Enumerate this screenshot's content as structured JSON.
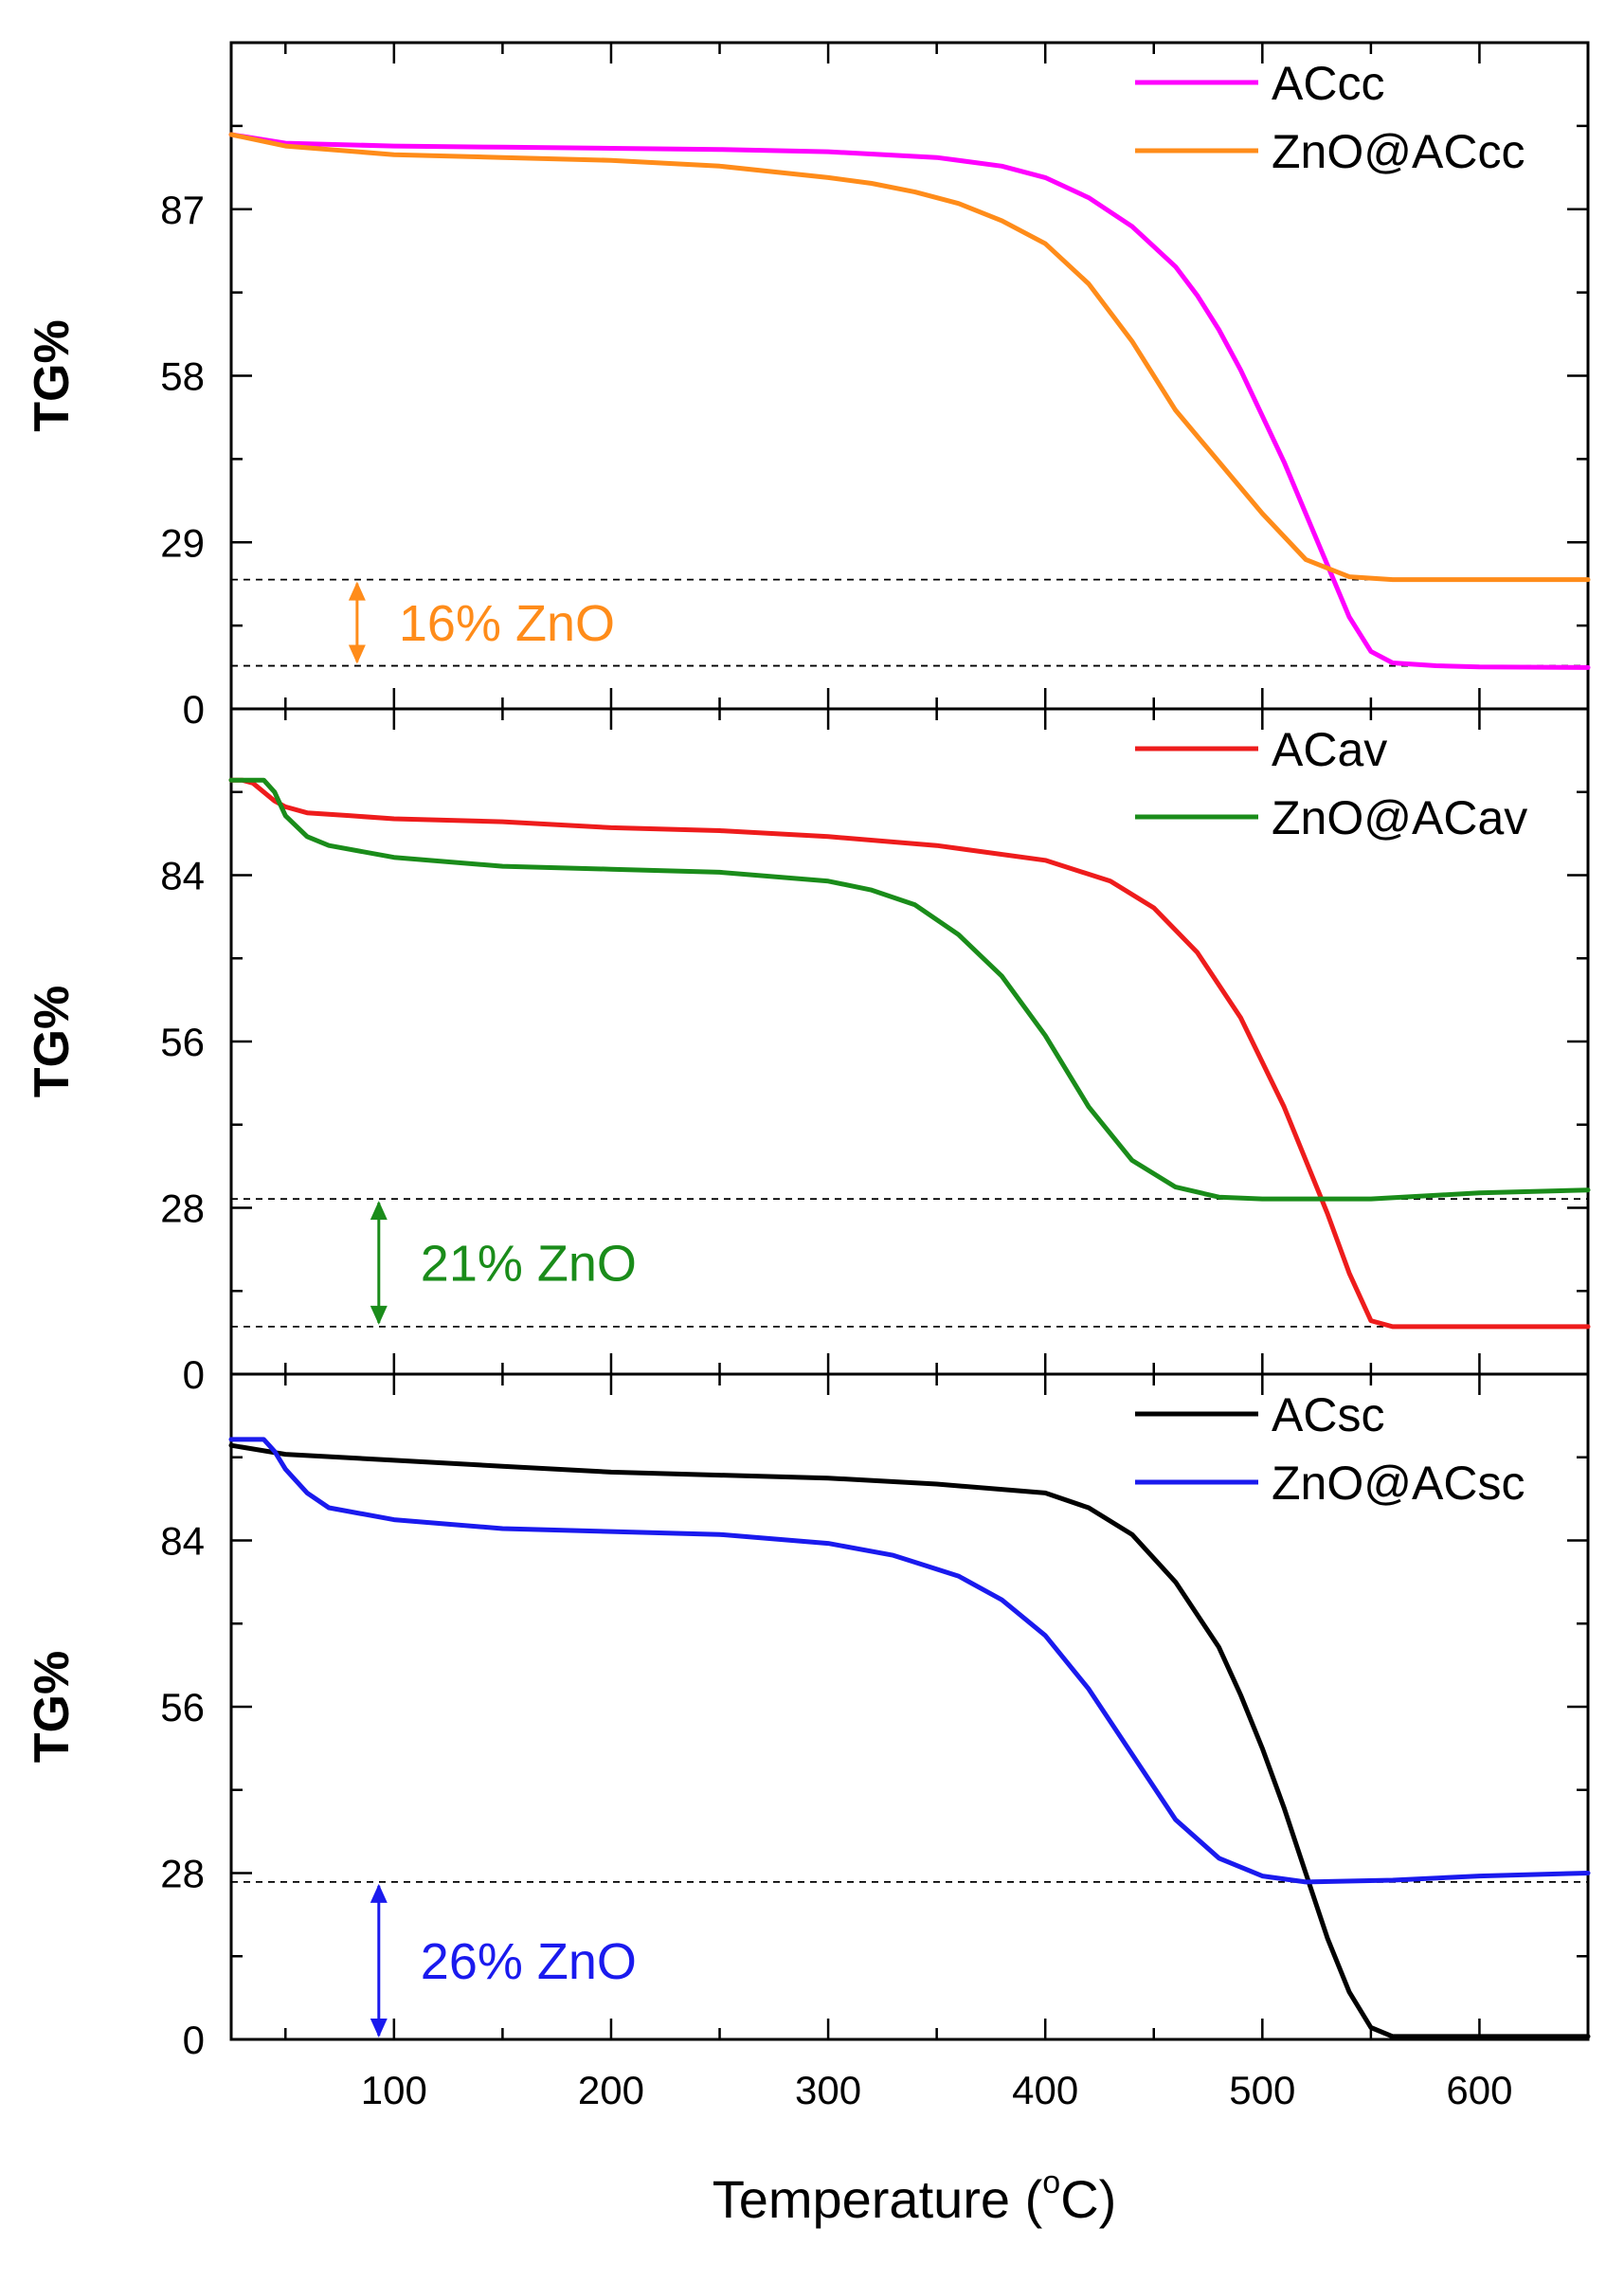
{
  "figure": {
    "xlabel": "Temperature (",
    "xlabel_sup": "o",
    "xlabel_end": "C)"
  },
  "chart_data": [
    {
      "type": "line",
      "ylabel": "TG%",
      "xlim": [
        25,
        650
      ],
      "ylim": [
        0,
        116
      ],
      "yticks": [
        0,
        29,
        58,
        87
      ],
      "xticks": [
        100,
        200,
        300,
        400,
        500,
        600
      ],
      "show_x_tick_labels": false,
      "legend_position": "top-right",
      "series": [
        {
          "name": "ACcc",
          "color": "#ff00ff",
          "x": [
            25,
            50,
            100,
            150,
            200,
            250,
            300,
            350,
            380,
            400,
            420,
            440,
            460,
            470,
            480,
            490,
            500,
            510,
            520,
            530,
            540,
            550,
            560,
            580,
            600,
            650
          ],
          "y": [
            100,
            98.5,
            98,
            97.8,
            97.6,
            97.4,
            97,
            96,
            94.5,
            92.5,
            89,
            84,
            77,
            72,
            66,
            59,
            51,
            43,
            34,
            25,
            16,
            10,
            8,
            7.5,
            7.3,
            7.2
          ]
        },
        {
          "name": "ZnO@ACcc",
          "color": "#ff8c1a",
          "x": [
            25,
            50,
            100,
            150,
            200,
            250,
            300,
            320,
            340,
            360,
            380,
            400,
            420,
            440,
            460,
            480,
            500,
            520,
            540,
            560,
            600,
            650
          ],
          "y": [
            100,
            98,
            96.5,
            96,
            95.5,
            94.5,
            92.5,
            91.5,
            90,
            88,
            85,
            81,
            74,
            64,
            52,
            43,
            34,
            26,
            23,
            22.5,
            22.5,
            22.5
          ]
        }
      ],
      "guides": [
        22.5,
        7.5
      ],
      "annotation": {
        "text": "16% ZnO",
        "color": "#ff8c1a",
        "arrow_x": 83,
        "arrow_from": 22.5,
        "arrow_to": 7.5
      }
    },
    {
      "type": "line",
      "ylabel": "TG%",
      "xlim": [
        25,
        650
      ],
      "ylim": [
        0,
        112
      ],
      "yticks": [
        0,
        28,
        56,
        84
      ],
      "xticks": [
        100,
        200,
        300,
        400,
        500,
        600
      ],
      "show_x_tick_labels": false,
      "legend_position": "top-right",
      "series": [
        {
          "name": "ACav",
          "color": "#ee1c1c",
          "x": [
            25,
            30,
            35,
            40,
            45,
            50,
            60,
            80,
            100,
            150,
            200,
            250,
            300,
            350,
            400,
            430,
            450,
            470,
            490,
            510,
            530,
            540,
            550,
            560,
            600,
            650
          ],
          "y": [
            100,
            100,
            99.5,
            98,
            96.5,
            95.5,
            94.5,
            94,
            93.5,
            93,
            92,
            91.5,
            90.5,
            89,
            86.5,
            83,
            78.5,
            71,
            60,
            45,
            27,
            17,
            9,
            8,
            8,
            8
          ]
        },
        {
          "name": "ZnO@ACav",
          "color": "#1a8c1a",
          "x": [
            25,
            30,
            35,
            40,
            45,
            50,
            60,
            70,
            100,
            150,
            200,
            250,
            300,
            320,
            340,
            360,
            380,
            400,
            420,
            440,
            460,
            480,
            500,
            550,
            600,
            650
          ],
          "y": [
            100,
            100,
            100,
            100,
            98,
            94,
            90.5,
            89,
            87,
            85.5,
            85,
            84.5,
            83,
            81.5,
            79,
            74,
            67,
            57,
            45,
            36,
            31.5,
            29.8,
            29.5,
            29.5,
            30.5,
            31
          ]
        }
      ],
      "guides": [
        29.5,
        8
      ],
      "annotation": {
        "text": "21% ZnO",
        "color": "#1a8c1a",
        "arrow_x": 93,
        "arrow_from": 29.5,
        "arrow_to": 8
      }
    },
    {
      "type": "line",
      "ylabel": "TG%",
      "xlim": [
        25,
        650
      ],
      "ylim": [
        0,
        112
      ],
      "yticks": [
        0,
        28,
        56,
        84
      ],
      "xticks": [
        100,
        200,
        300,
        400,
        500,
        600
      ],
      "show_x_tick_labels": true,
      "legend_position": "top-right",
      "series": [
        {
          "name": "ACsc",
          "color": "#000000",
          "x": [
            25,
            50,
            100,
            150,
            200,
            250,
            300,
            350,
            400,
            420,
            440,
            460,
            480,
            490,
            500,
            510,
            520,
            530,
            540,
            550,
            560,
            600,
            650
          ],
          "y": [
            100,
            98.5,
            97.5,
            96.5,
            95.5,
            95,
            94.5,
            93.5,
            92,
            89.5,
            85,
            77,
            66,
            58,
            49,
            39,
            28,
            17,
            8,
            2,
            0.5,
            0.5,
            0.5
          ]
        },
        {
          "name": "ZnO@ACsc",
          "color": "#1a1aee",
          "x": [
            25,
            30,
            35,
            40,
            45,
            50,
            60,
            70,
            100,
            150,
            200,
            250,
            300,
            330,
            360,
            380,
            400,
            420,
            440,
            460,
            480,
            500,
            520,
            560,
            600,
            650
          ],
          "y": [
            101,
            101,
            101,
            101,
            99,
            96,
            92,
            89.5,
            87.5,
            86,
            85.5,
            85,
            83.5,
            81.5,
            78,
            74,
            68,
            59,
            48,
            37,
            30.5,
            27.5,
            26.5,
            26.8,
            27.5,
            28
          ]
        }
      ],
      "guides": [
        26.5
      ],
      "annotation": {
        "text": "26% ZnO",
        "color": "#1a1aee",
        "arrow_x": 93,
        "arrow_from": 26.5,
        "arrow_to": 0
      }
    }
  ]
}
